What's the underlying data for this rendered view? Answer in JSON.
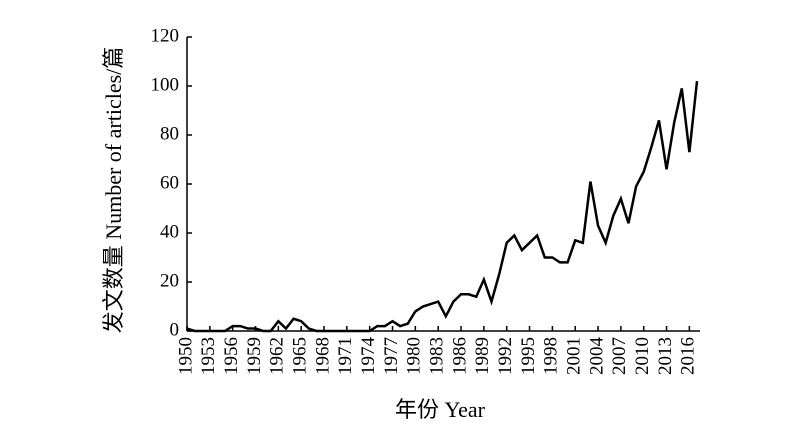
{
  "chart_data": {
    "type": "line",
    "x_label": "年份 Year",
    "y_label": "发文数量 Number of articles/篇",
    "x": [
      1950,
      1951,
      1952,
      1953,
      1954,
      1955,
      1956,
      1957,
      1958,
      1959,
      1960,
      1961,
      1962,
      1963,
      1964,
      1965,
      1966,
      1967,
      1968,
      1969,
      1970,
      1971,
      1972,
      1973,
      1974,
      1975,
      1976,
      1977,
      1978,
      1979,
      1980,
      1981,
      1982,
      1983,
      1984,
      1985,
      1986,
      1987,
      1988,
      1989,
      1990,
      1991,
      1992,
      1993,
      1994,
      1995,
      1996,
      1997,
      1998,
      1999,
      2000,
      2001,
      2002,
      2003,
      2004,
      2005,
      2006,
      2007,
      2008,
      2009,
      2010,
      2011,
      2012,
      2013,
      2014,
      2015,
      2016,
      2017
    ],
    "values": [
      1,
      0,
      0,
      0,
      0,
      0,
      2,
      2,
      1,
      1,
      0,
      0,
      4,
      1,
      5,
      4,
      1,
      0,
      0,
      0,
      0,
      0,
      0,
      0,
      0,
      2,
      2,
      4,
      2,
      3,
      8,
      10,
      11,
      12,
      6,
      12,
      15,
      15,
      14,
      21,
      12,
      23,
      36,
      39,
      33,
      36,
      39,
      30,
      30,
      28,
      28,
      37,
      36,
      61,
      43,
      36,
      47,
      54,
      44,
      59,
      65,
      75,
      86,
      66,
      85,
      99,
      73,
      102
    ],
    "color": "#000000",
    "xlim": [
      1950,
      2017
    ],
    "xticks": [
      1950,
      1953,
      1956,
      1959,
      1962,
      1965,
      1968,
      1971,
      1974,
      1977,
      1980,
      1983,
      1986,
      1989,
      1992,
      1995,
      1998,
      2001,
      2004,
      2007,
      2010,
      2013,
      2016
    ],
    "ylim": [
      0,
      120
    ],
    "yticks": [
      0,
      20,
      40,
      60,
      80,
      100,
      120
    ]
  }
}
